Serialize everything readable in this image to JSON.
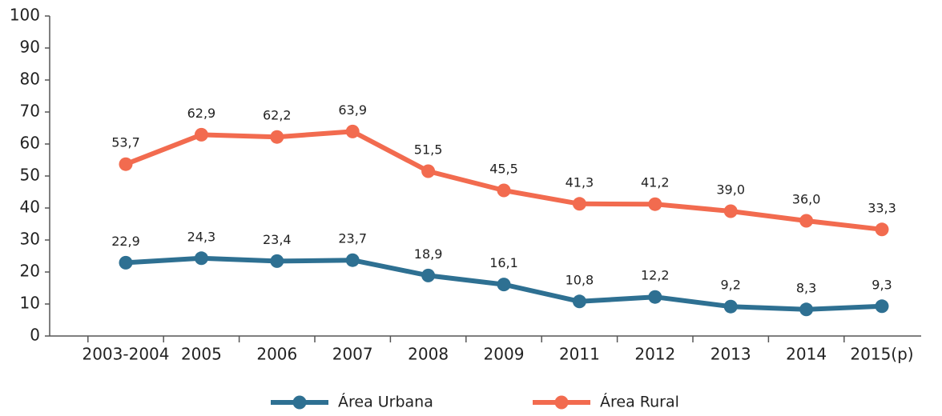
{
  "chart_data": {
    "type": "line",
    "categories": [
      "2003-2004",
      "2005",
      "2006",
      "2007",
      "2008",
      "2009",
      "2011",
      "2012",
      "2013",
      "2014",
      "2015(p)"
    ],
    "series": [
      {
        "name": "Área Urbana",
        "color": "#2e7092",
        "values": [
          22.9,
          24.3,
          23.4,
          23.7,
          18.9,
          16.1,
          10.8,
          12.2,
          9.2,
          8.3,
          9.3
        ],
        "value_labels": [
          "22,9",
          "24,3",
          "23,4",
          "23,7",
          "18,9",
          "16,1",
          "10,8",
          "12,2",
          "9,2",
          "8,3",
          "9,3"
        ]
      },
      {
        "name": "Área Rural",
        "color": "#f26b4f",
        "values": [
          53.7,
          62.9,
          62.2,
          63.9,
          51.5,
          45.5,
          41.3,
          41.2,
          39.0,
          36.0,
          33.3
        ],
        "value_labels": [
          "53,7",
          "62,9",
          "62,2",
          "63,9",
          "51,5",
          "45,5",
          "41,3",
          "41,2",
          "39,0",
          "36,0",
          "33,3"
        ]
      }
    ],
    "ylim": [
      0,
      100
    ],
    "yticks": [
      0,
      10,
      20,
      30,
      40,
      50,
      60,
      70,
      80,
      90,
      100
    ],
    "legend": "bottom"
  }
}
